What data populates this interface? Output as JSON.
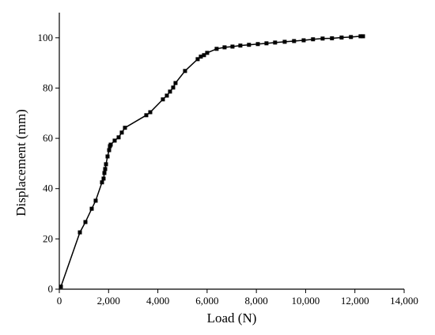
{
  "chart_data": {
    "type": "line",
    "x_label": "Load (N)",
    "y_label": "Displacement (mm)",
    "x": [
      64,
      835,
      1060,
      1316,
      1476,
      1733,
      1797,
      1830,
      1862,
      1895,
      1958,
      2022,
      2055,
      2087,
      2247,
      2408,
      2536,
      2665,
      3531,
      3692,
      4205,
      4366,
      4494,
      4622,
      4718,
      5104,
      5617,
      5745,
      5874,
      6002,
      6387,
      6709,
      7030,
      7350,
      7700,
      8060,
      8410,
      8760,
      9150,
      9530,
      9920,
      10300,
      10690,
      11070,
      11460,
      11840,
      12230,
      12330
    ],
    "series": [
      {
        "color": "#000000",
        "values": [
          1,
          22.6,
          26.7,
          32,
          35.2,
          42.5,
          44,
          46.2,
          47.8,
          49.7,
          52.8,
          55.3,
          56.9,
          57.5,
          59.1,
          60.4,
          62.3,
          64.2,
          69.2,
          70.4,
          75.5,
          77,
          78.6,
          80.2,
          82,
          86.8,
          91.5,
          92.5,
          93.1,
          94,
          95.6,
          96.2,
          96.5,
          96.9,
          97.2,
          97.5,
          97.8,
          98.1,
          98.4,
          98.7,
          99,
          99.4,
          99.7,
          99.8,
          100.1,
          100.3,
          100.6,
          100.6
        ]
      }
    ],
    "xlim": [
      0,
      14000
    ],
    "xticks": [
      0,
      {
        "value": 2000,
        "label": "2,000"
      },
      {
        "value": 4000,
        "label": "4,000"
      },
      {
        "value": 6000,
        "label": "6,000"
      },
      {
        "value": 8000,
        "label": "8,000"
      },
      {
        "value": 10000,
        "label": "10,000"
      },
      {
        "value": 12000,
        "label": "12,000"
      },
      {
        "value": 14000,
        "label": "14,000"
      }
    ],
    "ylim": [
      0,
      110
    ],
    "yticks": [
      0,
      20,
      40,
      60,
      80,
      100
    ],
    "grid": false
  }
}
